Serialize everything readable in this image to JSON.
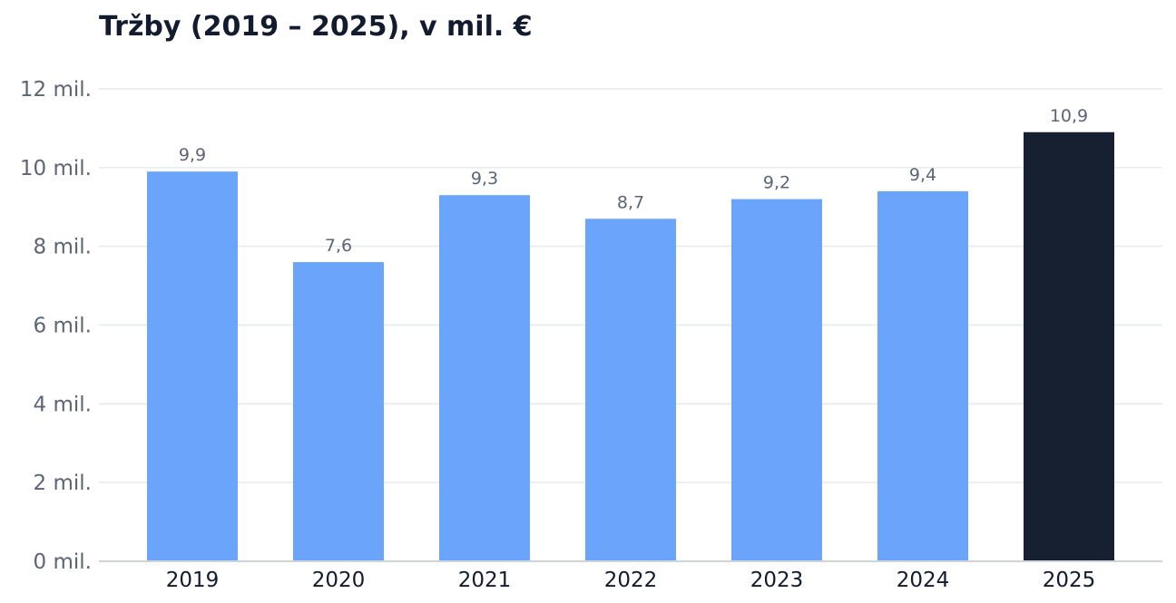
{
  "chart_data": {
    "type": "bar",
    "title": "Tržby (2019 – 2025), v mil. €",
    "xlabel": "",
    "ylabel": "",
    "categories": [
      "2019",
      "2020",
      "2021",
      "2022",
      "2023",
      "2024",
      "2025"
    ],
    "values": [
      9.9,
      7.6,
      9.3,
      8.7,
      9.2,
      9.4,
      10.9
    ],
    "value_labels": [
      "9,9",
      "7,6",
      "9,3",
      "8,7",
      "9,2",
      "9,4",
      "10,9"
    ],
    "ylim": [
      0,
      12
    ],
    "yticks": [
      0,
      2,
      4,
      6,
      8,
      10,
      12
    ],
    "ytick_labels": [
      "0 mil.",
      "2 mil.",
      "4 mil.",
      "6 mil.",
      "8 mil.",
      "10 mil.",
      "12 mil."
    ],
    "grid": true,
    "legend": "none",
    "colors": {
      "bar": "#6ba5fb",
      "highlight": "#172031",
      "grid": "#e6e9ee",
      "axis": "#cfd3da",
      "title": "#131c2e",
      "muted_text": "#5d6475"
    },
    "highlight_category": "2025"
  }
}
